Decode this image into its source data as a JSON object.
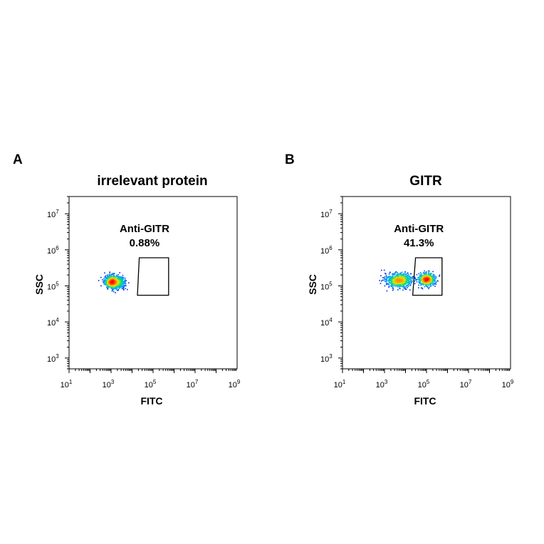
{
  "chart_data": [
    {
      "type": "scatter",
      "panel_label": "A",
      "title": "irrelevant protein",
      "xlabel": "FITC",
      "ylabel": "SSC",
      "x_scale": "log",
      "y_scale": "log",
      "xlim": [
        10,
        1000000000
      ],
      "ylim": [
        500,
        30000000
      ],
      "x_ticks": [
        {
          "base": "10",
          "exp": "1",
          "value": 10
        },
        {
          "base": "10",
          "exp": "3",
          "value": 1000
        },
        {
          "base": "10",
          "exp": "5",
          "value": 100000
        },
        {
          "base": "10",
          "exp": "7",
          "value": 10000000
        },
        {
          "base": "10",
          "exp": "9",
          "value": 1000000000
        }
      ],
      "y_ticks": [
        {
          "base": "10",
          "exp": "3",
          "value": 1000
        },
        {
          "base": "10",
          "exp": "4",
          "value": 10000
        },
        {
          "base": "10",
          "exp": "5",
          "value": 100000
        },
        {
          "base": "10",
          "exp": "6",
          "value": 1000000
        },
        {
          "base": "10",
          "exp": "7",
          "value": 10000000
        }
      ],
      "populations": [
        {
          "center_x": 1100,
          "center_y": 130000,
          "spread_log_x": 0.18,
          "spread_log_y": 0.09,
          "weight": 1.0
        },
        {
          "center_x": 2600,
          "center_y": 120000,
          "spread_log_x": 0.16,
          "spread_log_y": 0.09,
          "weight": 0.35
        }
      ],
      "gate": {
        "name": "Anti-GITR",
        "percent": "0.88%",
        "polygon": [
          [
            22000,
            600000
          ],
          [
            550000,
            600000
          ],
          [
            550000,
            55000
          ],
          [
            18000,
            55000
          ]
        ]
      }
    },
    {
      "type": "scatter",
      "panel_label": "B",
      "title": "GITR",
      "xlabel": "FITC",
      "ylabel": "SSC",
      "x_scale": "log",
      "y_scale": "log",
      "xlim": [
        10,
        1000000000
      ],
      "ylim": [
        500,
        30000000
      ],
      "x_ticks": [
        {
          "base": "10",
          "exp": "1",
          "value": 10
        },
        {
          "base": "10",
          "exp": "3",
          "value": 1000
        },
        {
          "base": "10",
          "exp": "5",
          "value": 100000
        },
        {
          "base": "10",
          "exp": "7",
          "value": 10000000
        },
        {
          "base": "10",
          "exp": "9",
          "value": 1000000000
        }
      ],
      "y_ticks": [
        {
          "base": "10",
          "exp": "3",
          "value": 1000
        },
        {
          "base": "10",
          "exp": "4",
          "value": 10000
        },
        {
          "base": "10",
          "exp": "5",
          "value": 100000
        },
        {
          "base": "10",
          "exp": "6",
          "value": 1000000
        },
        {
          "base": "10",
          "exp": "7",
          "value": 10000000
        }
      ],
      "populations": [
        {
          "center_x": 5000,
          "center_y": 140000,
          "spread_log_x": 0.32,
          "spread_log_y": 0.1,
          "weight": 1.0
        },
        {
          "center_x": 100000,
          "center_y": 150000,
          "spread_log_x": 0.22,
          "spread_log_y": 0.09,
          "weight": 0.75
        }
      ],
      "gate": {
        "name": "Anti-GITR",
        "percent": "41.3%",
        "polygon": [
          [
            30000,
            600000
          ],
          [
            550000,
            600000
          ],
          [
            550000,
            55000
          ],
          [
            22000,
            55000
          ]
        ]
      }
    }
  ]
}
